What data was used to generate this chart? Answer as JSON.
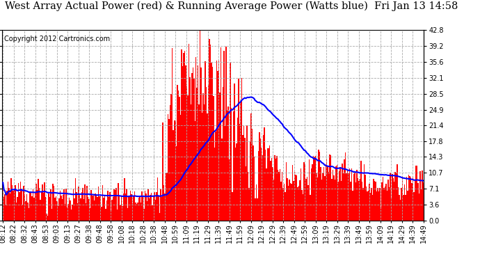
{
  "title": "West Array Actual Power (red) & Running Average Power (Watts blue)  Fri Jan 13 14:58",
  "copyright": "Copyright 2012 Cartronics.com",
  "background_color": "#ffffff",
  "bar_color": "#ff0000",
  "line_color": "#0000ff",
  "plot_bg_color": "#ffffff",
  "grid_color": "#aaaaaa",
  "yticks": [
    0.0,
    3.6,
    7.1,
    10.7,
    14.3,
    17.8,
    21.4,
    24.9,
    28.5,
    32.1,
    35.6,
    39.2,
    42.8
  ],
  "ylim": [
    0.0,
    42.8
  ],
  "xtick_labels": [
    "08:12",
    "08:22",
    "08:32",
    "08:43",
    "08:53",
    "09:03",
    "09:13",
    "09:27",
    "09:38",
    "09:48",
    "09:58",
    "10:08",
    "10:18",
    "10:28",
    "10:38",
    "10:48",
    "10:59",
    "11:09",
    "11:19",
    "11:29",
    "11:39",
    "11:49",
    "11:59",
    "12:09",
    "12:19",
    "12:29",
    "12:39",
    "12:49",
    "12:59",
    "13:09",
    "13:19",
    "13:29",
    "13:39",
    "13:49",
    "13:59",
    "14:09",
    "14:19",
    "14:29",
    "14:39",
    "14:49"
  ],
  "title_fontsize": 10.5,
  "copyright_fontsize": 7,
  "tick_fontsize": 7,
  "n_points": 406
}
